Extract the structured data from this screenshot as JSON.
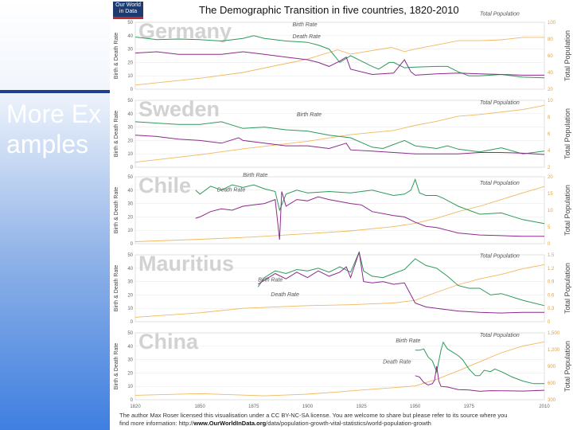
{
  "slide": {
    "text": "More Examples"
  },
  "logo": {
    "line1": "Our World",
    "line2": "in Data"
  },
  "figure_title": "The Demographic Transition in five countries, 1820-2010",
  "left_axis_label": "Birth & Death Rate",
  "right_axis_label": "Total Population",
  "credit": {
    "line1": "The author Max Roser licensed this visualisation under a CC BY-NC-SA license. You are welcome to share but please refer to its source where you",
    "line2_prefix": "find more information: http://",
    "line2_link": "www.OurWorldInData.org",
    "line2_suffix": "/data/population-growth-vital-statistics/world-population-growth"
  },
  "chart_data": [
    {
      "type": "line",
      "country": "Germany",
      "xlim": [
        1820,
        2010
      ],
      "ylim": [
        0,
        50
      ],
      "yticks": [
        "0",
        "10",
        "20",
        "30",
        "40",
        "50"
      ],
      "y2lim": [
        20,
        100
      ],
      "y2ticks": [
        "20",
        "40",
        "60",
        "80",
        "100"
      ],
      "labels": {
        "birth": "Birth Rate",
        "death": "Death Rate",
        "pop": "Total Population"
      },
      "birth": [
        [
          1820,
          39
        ],
        [
          1830,
          37
        ],
        [
          1840,
          37.5
        ],
        [
          1850,
          37
        ],
        [
          1860,
          36
        ],
        [
          1870,
          38
        ],
        [
          1875,
          40
        ],
        [
          1880,
          38
        ],
        [
          1890,
          36
        ],
        [
          1900,
          35
        ],
        [
          1905,
          33
        ],
        [
          1910,
          30
        ],
        [
          1915,
          20
        ],
        [
          1920,
          25
        ],
        [
          1925,
          21
        ],
        [
          1930,
          17
        ],
        [
          1933,
          15
        ],
        [
          1938,
          20
        ],
        [
          1940,
          20
        ],
        [
          1945,
          16
        ],
        [
          1950,
          16.5
        ],
        [
          1960,
          17
        ],
        [
          1965,
          17
        ],
        [
          1970,
          13
        ],
        [
          1975,
          10
        ],
        [
          1980,
          10
        ],
        [
          1990,
          11
        ],
        [
          2000,
          9
        ],
        [
          2010,
          8.5
        ]
      ],
      "death": [
        [
          1820,
          27
        ],
        [
          1830,
          28
        ],
        [
          1840,
          26
        ],
        [
          1850,
          26
        ],
        [
          1860,
          26
        ],
        [
          1870,
          28
        ],
        [
          1875,
          27
        ],
        [
          1880,
          26
        ],
        [
          1890,
          24
        ],
        [
          1900,
          22
        ],
        [
          1905,
          20
        ],
        [
          1910,
          17
        ],
        [
          1915,
          21
        ],
        [
          1918,
          24
        ],
        [
          1920,
          15
        ],
        [
          1930,
          11
        ],
        [
          1940,
          12
        ],
        [
          1945,
          22
        ],
        [
          1948,
          13
        ],
        [
          1950,
          10.5
        ],
        [
          1960,
          11.5
        ],
        [
          1970,
          12
        ],
        [
          1980,
          11.5
        ],
        [
          1990,
          11
        ],
        [
          2000,
          10.5
        ],
        [
          2010,
          10.5
        ]
      ],
      "pop": [
        [
          1820,
          25
        ],
        [
          1850,
          33
        ],
        [
          1870,
          40
        ],
        [
          1900,
          56
        ],
        [
          1914,
          67
        ],
        [
          1920,
          62
        ],
        [
          1939,
          70
        ],
        [
          1945,
          65
        ],
        [
          1950,
          68
        ],
        [
          1960,
          73
        ],
        [
          1970,
          78
        ],
        [
          1980,
          78
        ],
        [
          1990,
          79
        ],
        [
          2000,
          82
        ],
        [
          2010,
          82
        ]
      ]
    },
    {
      "type": "line",
      "country": "Sweden",
      "xlim": [
        1820,
        2010
      ],
      "ylim": [
        0,
        50
      ],
      "yticks": [
        "0",
        "10",
        "20",
        "30",
        "40",
        "50"
      ],
      "y2lim": [
        2,
        10
      ],
      "y2ticks": [
        "2",
        "4",
        "6",
        "8",
        "10"
      ],
      "labels": {
        "birth": "Birth Rate",
        "death": "Death Rate",
        "pop": "Total Population"
      },
      "birth": [
        [
          1820,
          34
        ],
        [
          1830,
          33
        ],
        [
          1840,
          32
        ],
        [
          1850,
          32
        ],
        [
          1860,
          34
        ],
        [
          1870,
          29
        ],
        [
          1880,
          30
        ],
        [
          1890,
          28
        ],
        [
          1900,
          27
        ],
        [
          1910,
          24
        ],
        [
          1920,
          22
        ],
        [
          1930,
          15
        ],
        [
          1935,
          14
        ],
        [
          1945,
          20
        ],
        [
          1950,
          16
        ],
        [
          1960,
          14
        ],
        [
          1965,
          16
        ],
        [
          1970,
          13.5
        ],
        [
          1980,
          11.5
        ],
        [
          1990,
          14.5
        ],
        [
          2000,
          10
        ],
        [
          2010,
          12
        ]
      ],
      "death": [
        [
          1820,
          24
        ],
        [
          1830,
          23
        ],
        [
          1840,
          21
        ],
        [
          1850,
          20
        ],
        [
          1860,
          18
        ],
        [
          1868,
          22
        ],
        [
          1870,
          20
        ],
        [
          1880,
          18
        ],
        [
          1890,
          16
        ],
        [
          1900,
          16
        ],
        [
          1910,
          14
        ],
        [
          1918,
          18
        ],
        [
          1920,
          13
        ],
        [
          1930,
          12
        ],
        [
          1940,
          11
        ],
        [
          1950,
          10
        ],
        [
          1960,
          10
        ],
        [
          1970,
          10
        ],
        [
          1980,
          11
        ],
        [
          1990,
          11
        ],
        [
          2000,
          10.5
        ],
        [
          2010,
          9.5
        ]
      ],
      "pop": [
        [
          1820,
          2.6
        ],
        [
          1850,
          3.5
        ],
        [
          1870,
          4.2
        ],
        [
          1900,
          5.1
        ],
        [
          1920,
          5.9
        ],
        [
          1940,
          6.4
        ],
        [
          1950,
          7.0
        ],
        [
          1960,
          7.5
        ],
        [
          1970,
          8.1
        ],
        [
          1980,
          8.3
        ],
        [
          1990,
          8.6
        ],
        [
          2000,
          8.9
        ],
        [
          2010,
          9.4
        ]
      ]
    },
    {
      "type": "line",
      "country": "Chile",
      "xlim": [
        1820,
        2010
      ],
      "ylim": [
        0,
        50
      ],
      "yticks": [
        "0",
        "10",
        "20",
        "30",
        "40",
        "50"
      ],
      "y2lim": [
        0,
        20
      ],
      "y2ticks": [
        "0",
        "5",
        "10",
        "15",
        "20"
      ],
      "labels": {
        "birth": "Birth Rate",
        "death": "Death Rate",
        "pop": "Total Population"
      },
      "birth": [
        [
          1848,
          40
        ],
        [
          1850,
          37
        ],
        [
          1855,
          43
        ],
        [
          1860,
          40
        ],
        [
          1865,
          44
        ],
        [
          1870,
          42
        ],
        [
          1875,
          44
        ],
        [
          1880,
          41
        ],
        [
          1885,
          39
        ],
        [
          1887,
          25
        ],
        [
          1890,
          37
        ],
        [
          1895,
          40
        ],
        [
          1900,
          38
        ],
        [
          1910,
          39
        ],
        [
          1920,
          38
        ],
        [
          1930,
          40
        ],
        [
          1940,
          36
        ],
        [
          1945,
          37
        ],
        [
          1948,
          40
        ],
        [
          1950,
          48
        ],
        [
          1952,
          38
        ],
        [
          1955,
          36
        ],
        [
          1960,
          36
        ],
        [
          1963,
          34
        ],
        [
          1970,
          28
        ],
        [
          1975,
          25
        ],
        [
          1980,
          22
        ],
        [
          1990,
          23
        ],
        [
          2000,
          18
        ],
        [
          2010,
          15
        ]
      ],
      "death": [
        [
          1848,
          19
        ],
        [
          1850,
          20
        ],
        [
          1855,
          24
        ],
        [
          1860,
          26
        ],
        [
          1865,
          25
        ],
        [
          1870,
          28
        ],
        [
          1875,
          29
        ],
        [
          1880,
          30
        ],
        [
          1885,
          33
        ],
        [
          1887,
          3
        ],
        [
          1888,
          39
        ],
        [
          1890,
          28
        ],
        [
          1895,
          33
        ],
        [
          1900,
          32
        ],
        [
          1905,
          35
        ],
        [
          1910,
          33
        ],
        [
          1920,
          30
        ],
        [
          1925,
          29
        ],
        [
          1930,
          24
        ],
        [
          1940,
          21
        ],
        [
          1945,
          20
        ],
        [
          1950,
          16
        ],
        [
          1955,
          13
        ],
        [
          1960,
          12
        ],
        [
          1965,
          10
        ],
        [
          1970,
          8
        ],
        [
          1980,
          6.5
        ],
        [
          1990,
          6
        ],
        [
          2000,
          5.5
        ],
        [
          2010,
          5.5
        ]
      ],
      "pop": [
        [
          1820,
          0.6
        ],
        [
          1850,
          1.3
        ],
        [
          1875,
          2.0
        ],
        [
          1900,
          3.0
        ],
        [
          1920,
          3.8
        ],
        [
          1940,
          5.1
        ],
        [
          1950,
          6.1
        ],
        [
          1960,
          7.6
        ],
        [
          1970,
          9.6
        ],
        [
          1980,
          11.2
        ],
        [
          1990,
          13.2
        ],
        [
          2000,
          15.2
        ],
        [
          2010,
          17.1
        ]
      ]
    },
    {
      "type": "line",
      "country": "Mauritius",
      "xlim": [
        1820,
        2010
      ],
      "ylim": [
        0,
        50
      ],
      "yticks": [
        "0",
        "10",
        "20",
        "30",
        "40",
        "50"
      ],
      "y2lim": [
        0,
        1.5
      ],
      "y2ticks": [
        "0",
        "0.3",
        "0.6",
        "0.9",
        "1.2",
        "1.5"
      ],
      "labels": {
        "birth": "Birth Rate",
        "death": "Death Rate",
        "pop": "Total Population"
      },
      "birth": [
        [
          1877,
          26
        ],
        [
          1880,
          33
        ],
        [
          1885,
          38
        ],
        [
          1890,
          36
        ],
        [
          1895,
          39
        ],
        [
          1900,
          38
        ],
        [
          1905,
          40
        ],
        [
          1910,
          37
        ],
        [
          1915,
          41
        ],
        [
          1920,
          37
        ],
        [
          1924,
          52
        ],
        [
          1926,
          38
        ],
        [
          1930,
          34
        ],
        [
          1935,
          33
        ],
        [
          1940,
          36
        ],
        [
          1945,
          39
        ],
        [
          1950,
          47
        ],
        [
          1955,
          42
        ],
        [
          1960,
          40
        ],
        [
          1965,
          34
        ],
        [
          1970,
          27
        ],
        [
          1975,
          25
        ],
        [
          1980,
          25
        ],
        [
          1985,
          20
        ],
        [
          1990,
          21
        ],
        [
          2000,
          16
        ],
        [
          2010,
          12
        ]
      ],
      "death": [
        [
          1877,
          28
        ],
        [
          1880,
          31
        ],
        [
          1885,
          36
        ],
        [
          1890,
          32
        ],
        [
          1895,
          37
        ],
        [
          1900,
          33
        ],
        [
          1905,
          38
        ],
        [
          1910,
          34
        ],
        [
          1915,
          37
        ],
        [
          1918,
          41
        ],
        [
          1920,
          33
        ],
        [
          1924,
          52
        ],
        [
          1926,
          30
        ],
        [
          1930,
          29
        ],
        [
          1935,
          30
        ],
        [
          1940,
          28
        ],
        [
          1945,
          29
        ],
        [
          1948,
          20
        ],
        [
          1950,
          14
        ],
        [
          1955,
          11
        ],
        [
          1960,
          10
        ],
        [
          1970,
          8
        ],
        [
          1980,
          7
        ],
        [
          1990,
          6.5
        ],
        [
          2000,
          7
        ],
        [
          2010,
          7
        ]
      ],
      "pop": [
        [
          1820,
          0.1
        ],
        [
          1850,
          0.2
        ],
        [
          1870,
          0.3
        ],
        [
          1900,
          0.36
        ],
        [
          1920,
          0.38
        ],
        [
          1940,
          0.42
        ],
        [
          1950,
          0.48
        ],
        [
          1960,
          0.66
        ],
        [
          1970,
          0.83
        ],
        [
          1980,
          0.96
        ],
        [
          1990,
          1.06
        ],
        [
          2000,
          1.19
        ],
        [
          2010,
          1.28
        ]
      ]
    },
    {
      "type": "line",
      "country": "China",
      "xlim": [
        1820,
        2010
      ],
      "ylim": [
        0,
        50
      ],
      "yticks": [
        "0",
        "10",
        "20",
        "30",
        "40",
        "50"
      ],
      "y2lim": [
        300,
        1500
      ],
      "y2ticks": [
        "300",
        "600",
        "900",
        "1,200",
        "1,500"
      ],
      "labels": {
        "birth": "Birth Rate",
        "death": "Death Rate",
        "pop": "Total Population"
      },
      "birth": [
        [
          1950,
          37
        ],
        [
          1952,
          37
        ],
        [
          1954,
          38
        ],
        [
          1956,
          32
        ],
        [
          1958,
          29
        ],
        [
          1960,
          21
        ],
        [
          1962,
          37
        ],
        [
          1963,
          43
        ],
        [
          1965,
          38
        ],
        [
          1968,
          35
        ],
        [
          1970,
          33
        ],
        [
          1972,
          30
        ],
        [
          1975,
          23
        ],
        [
          1978,
          18
        ],
        [
          1980,
          18
        ],
        [
          1982,
          22
        ],
        [
          1985,
          21
        ],
        [
          1987,
          23
        ],
        [
          1990,
          21
        ],
        [
          1995,
          17
        ],
        [
          2000,
          14
        ],
        [
          2005,
          12
        ],
        [
          2010,
          12
        ]
      ],
      "death": [
        [
          1950,
          18
        ],
        [
          1952,
          17
        ],
        [
          1954,
          13
        ],
        [
          1956,
          11
        ],
        [
          1958,
          12
        ],
        [
          1959,
          14.5
        ],
        [
          1960,
          25
        ],
        [
          1961,
          14
        ],
        [
          1962,
          10
        ],
        [
          1965,
          9.5
        ],
        [
          1970,
          7.6
        ],
        [
          1975,
          7.3
        ],
        [
          1980,
          6.3
        ],
        [
          1985,
          6.8
        ],
        [
          1990,
          6.7
        ],
        [
          2000,
          6.5
        ],
        [
          2010,
          7.1
        ]
      ],
      "pop": [
        [
          1820,
          380
        ],
        [
          1850,
          410
        ],
        [
          1880,
          370
        ],
        [
          1900,
          400
        ],
        [
          1913,
          437
        ],
        [
          1930,
          489
        ],
        [
          1950,
          547
        ],
        [
          1960,
          667
        ],
        [
          1970,
          818
        ],
        [
          1980,
          981
        ],
        [
          1990,
          1143
        ],
        [
          2000,
          1263
        ],
        [
          2010,
          1338
        ]
      ]
    }
  ],
  "x_axis": {
    "ticks": [
      "1820",
      "1850",
      "1875",
      "1900",
      "1925",
      "1950",
      "1975",
      "2010"
    ]
  }
}
